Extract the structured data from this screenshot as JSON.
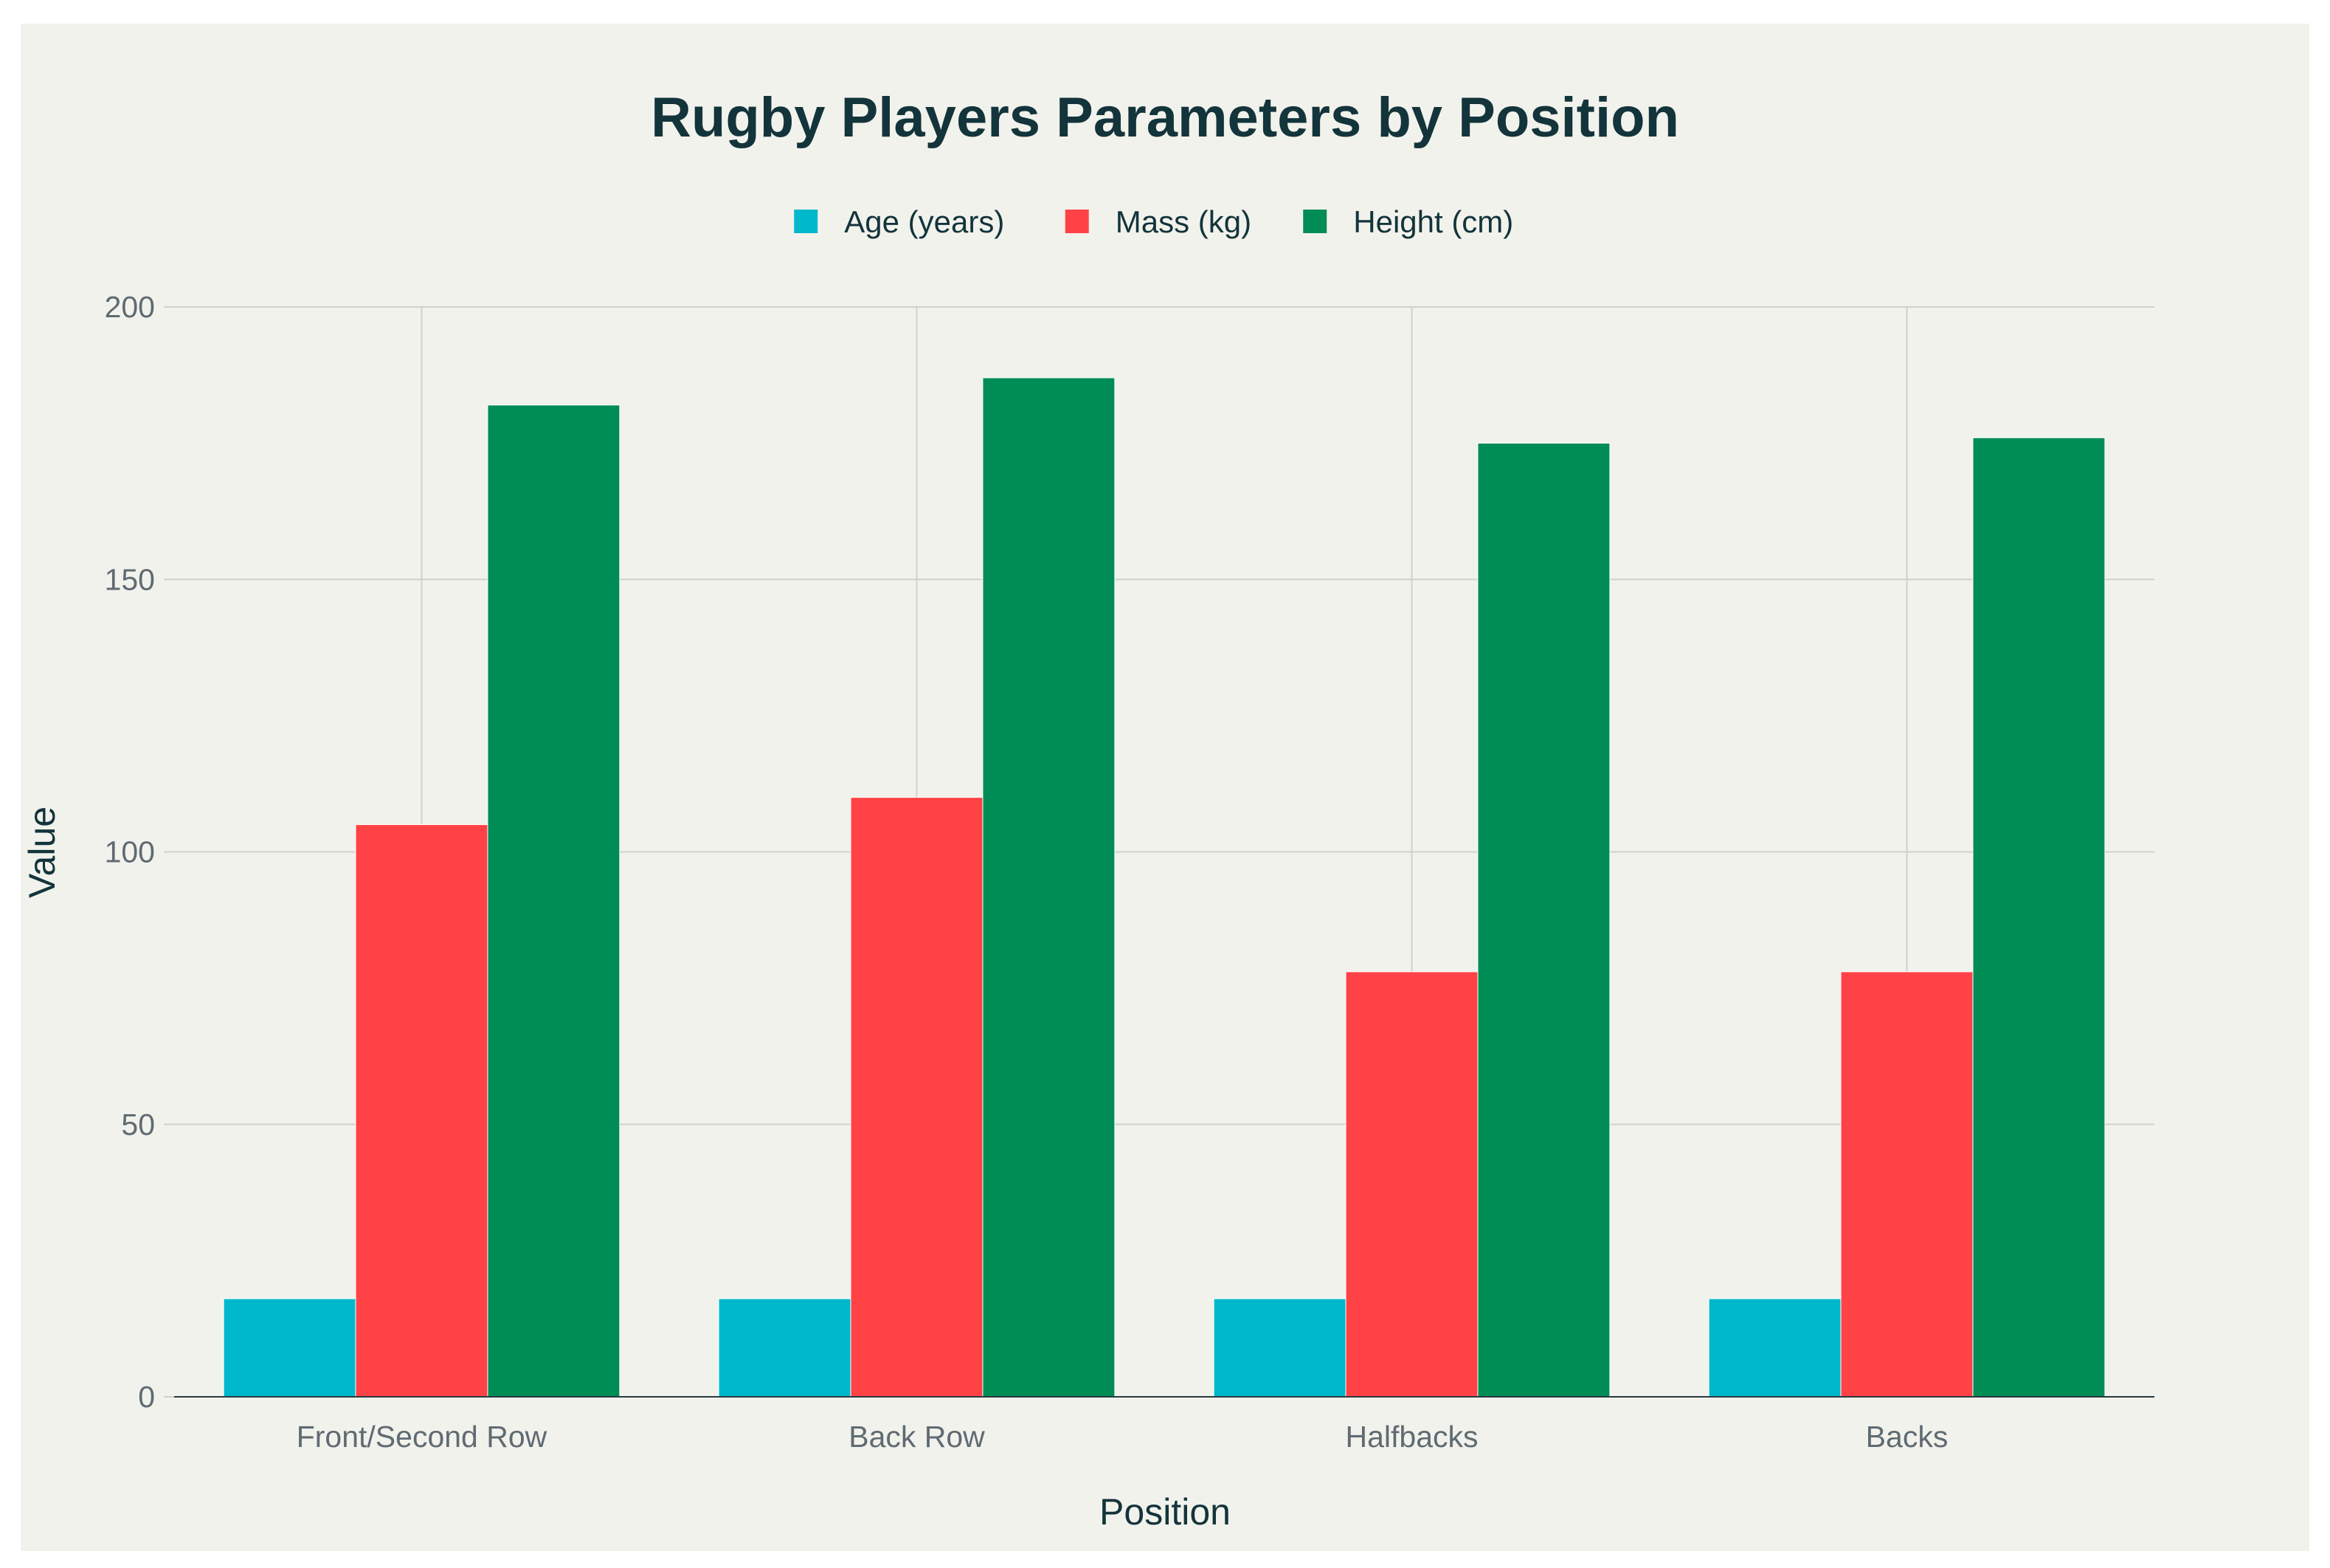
{
  "chart_data": {
    "type": "bar",
    "title": "Rugby Players Parameters by Position",
    "xlabel": "Position",
    "ylabel": "Value",
    "categories": [
      "Front/Second Row",
      "Back Row",
      "Halfbacks",
      "Backs"
    ],
    "series": [
      {
        "name": "Age (years)",
        "color": "#00b8cc",
        "values": [
          18,
          18,
          18,
          18
        ]
      },
      {
        "name": "Mass (kg)",
        "color": "#ff4245",
        "values": [
          105,
          110,
          78,
          78
        ]
      },
      {
        "name": "Height (cm)",
        "color": "#008c55",
        "values": [
          182,
          187,
          175,
          176
        ]
      }
    ],
    "ylim": [
      0,
      200
    ],
    "yticks": [
      0,
      50,
      100,
      150,
      200
    ],
    "ytick_labels": [
      "0",
      "50",
      "100",
      "150",
      "200"
    ],
    "grid": true,
    "legend_position": "top-center"
  },
  "colors": {
    "page_background": "#ffffff",
    "plot_background": "#f2f2ec",
    "gridline": "#cfd1cd",
    "axis_line": "#2a3a3f",
    "text": "#13343b",
    "tick_text": "#5f6b72"
  }
}
